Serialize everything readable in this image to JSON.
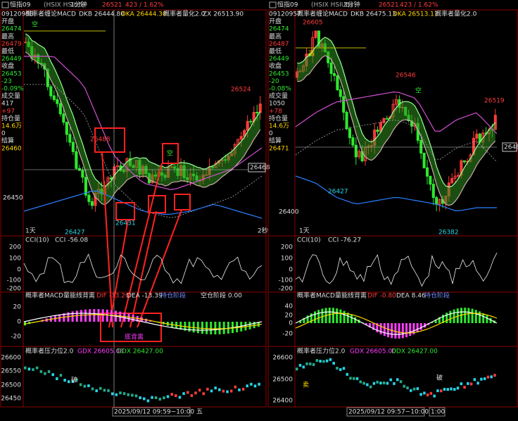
{
  "panels": [
    {
      "topbar": {
        "symbol": "恒指09",
        "code": "(HSIX HSIU5)",
        "period": "1分钟",
        "price": "26521",
        "change": "423 / 1.62%"
      },
      "sidebar": [
        "09120958",
        "开盘",
        "26474",
        "最高",
        "26479",
        "最低",
        "26449",
        "收盘",
        "26453",
        "-23",
        "-0.09%",
        "成交量",
        "417",
        "+97",
        "持仓量",
        "14.6万",
        "0",
        "结算",
        "26460"
      ],
      "main": {
        "indicator": "概率者缠论MACD",
        "dkb": "DKB 26444.80",
        "dka": "DKA 26444.30",
        "quant": "概率者量化2.0",
        "zx": "ZX 26513.90",
        "labels": [
          "26524",
          "26488",
          "26427",
          "26431",
          "26468",
          "26450",
          "1天",
          "2秒",
          "空",
          "空"
        ]
      },
      "cci": {
        "title": "CCI(10)",
        "value": "CCI -56.08",
        "axis": [
          "200",
          "100",
          "0",
          "-100",
          "-200"
        ]
      },
      "macd": {
        "title": "概率者MACD量能线背离",
        "dif": "DIF -13.26",
        "dea": "DEA -13.39",
        "stage1": "持仓阶段",
        "stage2": "空仓阶段 0.00",
        "axis": [
          "20",
          "0",
          "-20"
        ],
        "note": "底背离"
      },
      "pressure": {
        "title": "概率者压力位2.0",
        "gdx": "GDX 26605.00",
        "ddx": "DDX 26427.00",
        "axis": [
          "26600",
          "26550",
          "26500",
          "26450"
        ],
        "note": "破"
      },
      "time": [
        "2025/09/12 09:59~10:00 五"
      ]
    },
    {
      "topbar": {
        "symbol": "恒指09",
        "code": "(HSIX HSIU5)",
        "period": "3分钟",
        "price": "26521",
        "change": "423 / 1.62%"
      },
      "sidebar": [
        "09120957",
        "开盘",
        "26474",
        "最高",
        "26487",
        "最低",
        "26449",
        "收盘",
        "26453",
        "-20",
        "-0.08%",
        "成交量",
        "1050",
        "+78",
        "持仓量",
        "14.6万",
        "0",
        "结算",
        "26471"
      ],
      "main": {
        "indicator": "概率者缠论MACD",
        "dkb": "DKB 26475.13",
        "dka": "DKA 26513.11",
        "quant": "概率者量化2.0",
        "labels": [
          "26605",
          "26546",
          "26519",
          "26427",
          "26382",
          "2646",
          "26400",
          "高",
          "空",
          "1天"
        ]
      },
      "cci": {
        "title": "CCI(10)",
        "value": "CCI -76.27",
        "axis": [
          "200",
          "100",
          "0",
          "-100",
          "-200"
        ]
      },
      "macd": {
        "title": "概率者MACD量能线背离",
        "dif": "DIF -0.80",
        "dea": "DEA 8.46",
        "stage1": "持仓阶段",
        "axis": [
          "40",
          "20",
          "0",
          "-20"
        ]
      },
      "pressure": {
        "title": "概率者压力位2.0",
        "gdx": "GDX 26605.00",
        "ddx": "DDX 26427.00",
        "axis": [
          "26600",
          "26500",
          "26400"
        ],
        "note": "破",
        "note2": "卖"
      },
      "time": [
        "2025/09/12 09:57~10:00 五",
        "1:00"
      ]
    }
  ]
}
